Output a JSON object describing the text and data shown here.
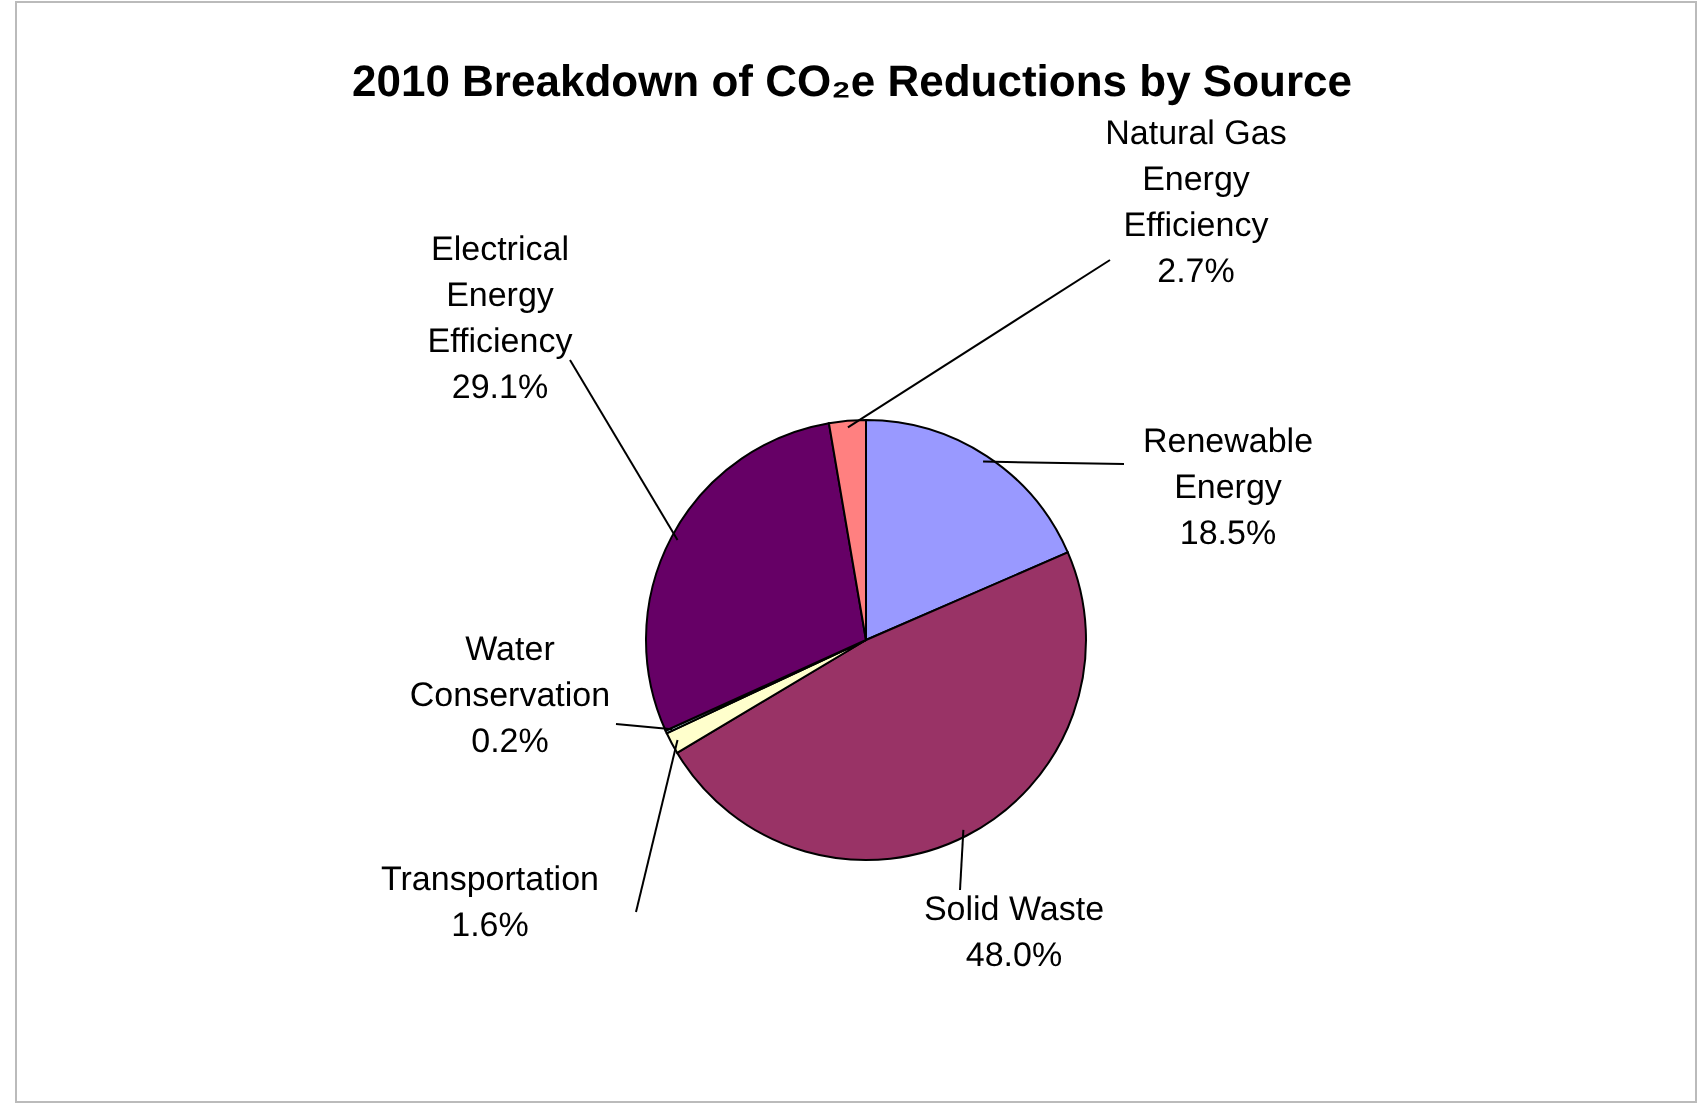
{
  "chart_data": {
    "type": "pie",
    "title": "2010 Breakdown of CO₂e Reductions by Source",
    "categories": [
      "Renewable Energy",
      "Solid Waste",
      "Transportation",
      "Water Conservation",
      "Electrical Energy Efficiency",
      "Natural Gas Energy Efficiency"
    ],
    "values": [
      18.5,
      48.0,
      1.6,
      0.2,
      29.1,
      2.7
    ],
    "colors": [
      "#9999ff",
      "#993366",
      "#ffffcc",
      "#ccffff",
      "#660066",
      "#ff8080"
    ],
    "value_labels": [
      "18.5%",
      "48.0%",
      "1.6%",
      "0.2%",
      "29.1%",
      "2.7%"
    ]
  }
}
